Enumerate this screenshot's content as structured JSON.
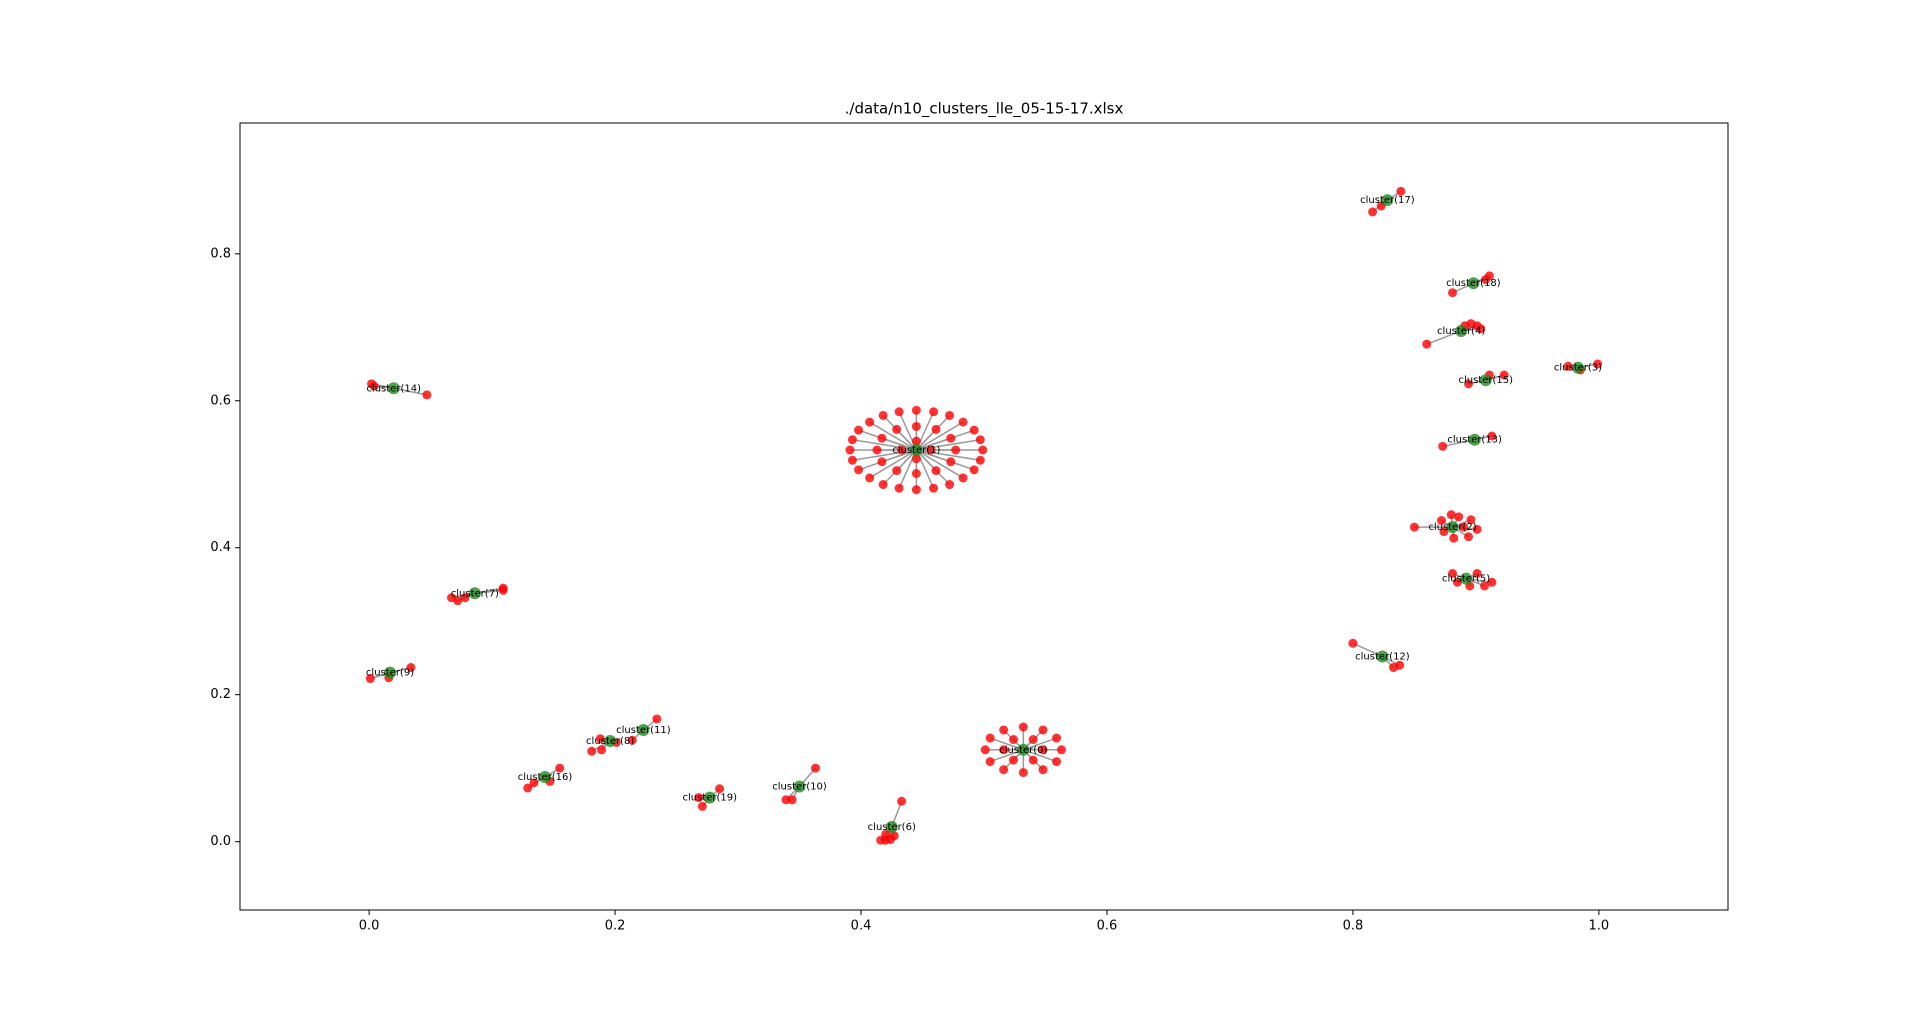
{
  "chart_data": {
    "type": "network",
    "title": "./data/n10_clusters_lle_05-15-17.xlsx",
    "xlim": [
      -0.105,
      1.105
    ],
    "ylim": [
      -0.093,
      0.978
    ],
    "xticks": [
      {
        "value": 0,
        "label": "0.0"
      },
      0.2,
      0.4,
      0.6,
      0.8,
      {
        "value": 1,
        "label": "1.0"
      }
    ],
    "yticks": [
      {
        "value": 0,
        "label": "0.0"
      },
      0.2,
      0.4,
      0.6,
      0.8
    ],
    "center_color": "#228b22",
    "member_color": "#ff0000",
    "edge_color": "#999999",
    "clusters": [
      {
        "name": "cluster(1)",
        "center": [
          0.445,
          0.533
        ],
        "members": [
          [
            0.499,
            0.533
          ],
          [
            0.497,
            0.547
          ],
          [
            0.492,
            0.56
          ],
          [
            0.483,
            0.571
          ],
          [
            0.472,
            0.58
          ],
          [
            0.459,
            0.585
          ],
          [
            0.445,
            0.587
          ],
          [
            0.431,
            0.585
          ],
          [
            0.418,
            0.58
          ],
          [
            0.407,
            0.571
          ],
          [
            0.398,
            0.56
          ],
          [
            0.393,
            0.547
          ],
          [
            0.391,
            0.533
          ],
          [
            0.393,
            0.519
          ],
          [
            0.398,
            0.506
          ],
          [
            0.407,
            0.495
          ],
          [
            0.418,
            0.486
          ],
          [
            0.431,
            0.481
          ],
          [
            0.445,
            0.479
          ],
          [
            0.459,
            0.481
          ],
          [
            0.472,
            0.486
          ],
          [
            0.483,
            0.495
          ],
          [
            0.492,
            0.506
          ],
          [
            0.497,
            0.519
          ],
          [
            0.477,
            0.533
          ],
          [
            0.473,
            0.549
          ],
          [
            0.461,
            0.561
          ],
          [
            0.445,
            0.565
          ],
          [
            0.429,
            0.561
          ],
          [
            0.417,
            0.549
          ],
          [
            0.413,
            0.533
          ],
          [
            0.417,
            0.517
          ],
          [
            0.429,
            0.505
          ],
          [
            0.445,
            0.501
          ],
          [
            0.461,
            0.505
          ],
          [
            0.473,
            0.517
          ],
          [
            0.457,
            0.533
          ],
          [
            0.445,
            0.545
          ],
          [
            0.433,
            0.533
          ],
          [
            0.445,
            0.521
          ]
        ]
      },
      {
        "name": "cluster(0)",
        "center": [
          0.532,
          0.125
        ],
        "members": [
          [
            0.563,
            0.125
          ],
          [
            0.559,
            0.141
          ],
          [
            0.548,
            0.152
          ],
          [
            0.532,
            0.156
          ],
          [
            0.516,
            0.152
          ],
          [
            0.505,
            0.141
          ],
          [
            0.501,
            0.125
          ],
          [
            0.505,
            0.109
          ],
          [
            0.516,
            0.098
          ],
          [
            0.532,
            0.094
          ],
          [
            0.548,
            0.098
          ],
          [
            0.559,
            0.109
          ],
          [
            0.548,
            0.125
          ],
          [
            0.54,
            0.139
          ],
          [
            0.524,
            0.139
          ],
          [
            0.516,
            0.125
          ],
          [
            0.524,
            0.111
          ],
          [
            0.54,
            0.111
          ]
        ]
      },
      {
        "name": "cluster(17)",
        "center": [
          0.828,
          0.873
        ],
        "members": [
          [
            0.839,
            0.885
          ],
          [
            0.816,
            0.857
          ],
          [
            0.823,
            0.865
          ]
        ]
      },
      {
        "name": "cluster(18)",
        "center": [
          0.898,
          0.76
        ],
        "members": [
          [
            0.911,
            0.77
          ],
          [
            0.908,
            0.765
          ],
          [
            0.881,
            0.747
          ]
        ]
      },
      {
        "name": "cluster(4)",
        "center": [
          0.888,
          0.695
        ],
        "members": [
          [
            0.86,
            0.677
          ],
          [
            0.896,
            0.705
          ],
          [
            0.901,
            0.702
          ],
          [
            0.904,
            0.698
          ],
          [
            0.891,
            0.702
          ]
        ]
      },
      {
        "name": "cluster(3)",
        "center": [
          0.983,
          0.645
        ],
        "members": [
          [
            0.999,
            0.65
          ],
          [
            0.985,
            0.642
          ],
          [
            0.975,
            0.647
          ]
        ]
      },
      {
        "name": "cluster(15)",
        "center": [
          0.908,
          0.628
        ],
        "members": [
          [
            0.923,
            0.635
          ],
          [
            0.911,
            0.635
          ],
          [
            0.894,
            0.623
          ]
        ]
      },
      {
        "name": "cluster(13)",
        "center": [
          0.899,
          0.547
        ],
        "members": [
          [
            0.873,
            0.538
          ],
          [
            0.913,
            0.552
          ]
        ]
      },
      {
        "name": "cluster(2)",
        "center": [
          0.881,
          0.428
        ],
        "members": [
          [
            0.85,
            0.428
          ],
          [
            0.886,
            0.442
          ],
          [
            0.896,
            0.438
          ],
          [
            0.901,
            0.425
          ],
          [
            0.894,
            0.415
          ],
          [
            0.882,
            0.413
          ],
          [
            0.874,
            0.422
          ],
          [
            0.872,
            0.437
          ],
          [
            0.88,
            0.445
          ],
          [
            0.89,
            0.428
          ]
        ]
      },
      {
        "name": "cluster(5)",
        "center": [
          0.892,
          0.358
        ],
        "members": [
          [
            0.881,
            0.365
          ],
          [
            0.901,
            0.365
          ],
          [
            0.907,
            0.348
          ],
          [
            0.913,
            0.353
          ],
          [
            0.895,
            0.348
          ],
          [
            0.885,
            0.353
          ]
        ]
      },
      {
        "name": "cluster(12)",
        "center": [
          0.824,
          0.252
        ],
        "members": [
          [
            0.8,
            0.27
          ],
          [
            0.833,
            0.237
          ],
          [
            0.838,
            0.24
          ]
        ]
      },
      {
        "name": "cluster(14)",
        "center": [
          0.02,
          0.617
        ],
        "members": [
          [
            0.002,
            0.623
          ],
          [
            0.047,
            0.608
          ],
          [
            0.004,
            0.62
          ]
        ]
      },
      {
        "name": "cluster(7)",
        "center": [
          0.086,
          0.338
        ],
        "members": [
          [
            0.067,
            0.332
          ],
          [
            0.072,
            0.328
          ],
          [
            0.078,
            0.332
          ],
          [
            0.109,
            0.345
          ],
          [
            0.109,
            0.342
          ]
        ]
      },
      {
        "name": "cluster(9)",
        "center": [
          0.017,
          0.23
        ],
        "members": [
          [
            0.001,
            0.222
          ],
          [
            0.034,
            0.237
          ],
          [
            0.016,
            0.223
          ]
        ]
      },
      {
        "name": "cluster(11)",
        "center": [
          0.223,
          0.152
        ],
        "members": [
          [
            0.234,
            0.167
          ],
          [
            0.214,
            0.138
          ]
        ]
      },
      {
        "name": "cluster(8)",
        "center": [
          0.196,
          0.137
        ],
        "members": [
          [
            0.181,
            0.123
          ],
          [
            0.189,
            0.125
          ],
          [
            0.188,
            0.14
          ],
          [
            0.201,
            0.135
          ]
        ]
      },
      {
        "name": "cluster(16)",
        "center": [
          0.143,
          0.088
        ],
        "members": [
          [
            0.129,
            0.073
          ],
          [
            0.155,
            0.1
          ],
          [
            0.134,
            0.08
          ],
          [
            0.147,
            0.082
          ]
        ]
      },
      {
        "name": "cluster(19)",
        "center": [
          0.277,
          0.06
        ],
        "members": [
          [
            0.285,
            0.072
          ],
          [
            0.271,
            0.048
          ],
          [
            0.268,
            0.06
          ]
        ]
      },
      {
        "name": "cluster(10)",
        "center": [
          0.35,
          0.075
        ],
        "members": [
          [
            0.363,
            0.1
          ],
          [
            0.339,
            0.057
          ],
          [
            0.344,
            0.057
          ]
        ]
      },
      {
        "name": "cluster(6)",
        "center": [
          0.425,
          0.02
        ],
        "members": [
          [
            0.433,
            0.055
          ],
          [
            0.416,
            0.002
          ],
          [
            0.42,
            0.002
          ],
          [
            0.424,
            0.003
          ],
          [
            0.427,
            0.008
          ],
          [
            0.42,
            0.01
          ]
        ]
      }
    ]
  }
}
